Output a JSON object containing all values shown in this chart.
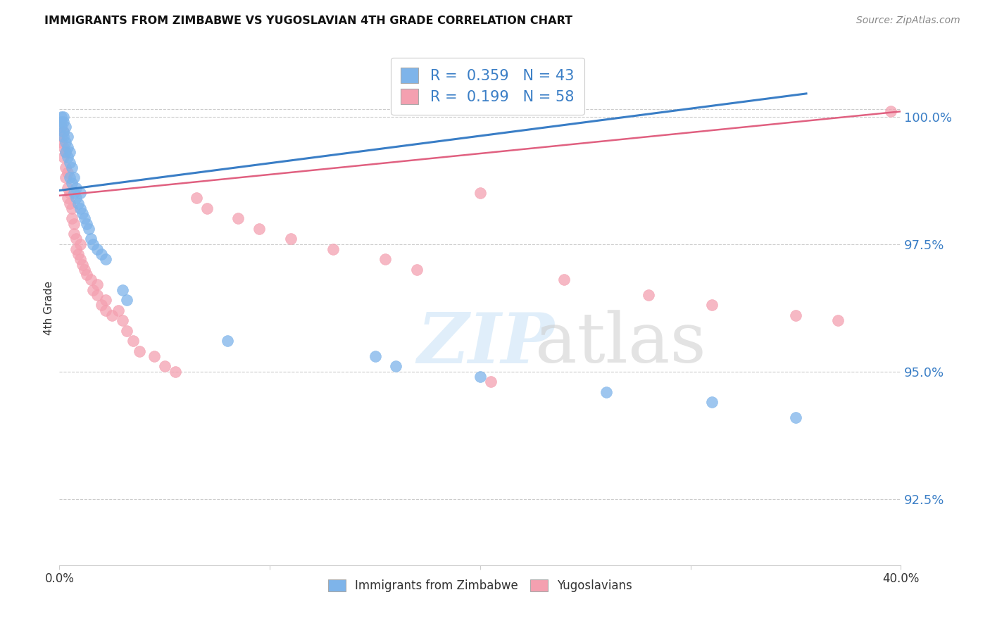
{
  "title": "IMMIGRANTS FROM ZIMBABWE VS YUGOSLAVIAN 4TH GRADE CORRELATION CHART",
  "source": "Source: ZipAtlas.com",
  "ylabel": "4th Grade",
  "yticks": [
    92.5,
    95.0,
    97.5,
    100.0
  ],
  "ytick_labels": [
    "92.5%",
    "95.0%",
    "97.5%",
    "100.0%"
  ],
  "xlim": [
    0.0,
    0.4
  ],
  "ylim": [
    91.2,
    101.3
  ],
  "blue_R": 0.359,
  "blue_N": 43,
  "pink_R": 0.199,
  "pink_N": 58,
  "blue_color": "#7EB4EA",
  "pink_color": "#F4A0B0",
  "blue_line_color": "#3A7EC6",
  "pink_line_color": "#E06080",
  "legend_label_blue": "Immigrants from Zimbabwe",
  "legend_label_pink": "Yugoslavians",
  "blue_line_x": [
    0.0,
    0.355
  ],
  "blue_line_y": [
    98.55,
    100.45
  ],
  "pink_line_x": [
    0.0,
    0.4
  ],
  "pink_line_y": [
    98.45,
    100.1
  ],
  "blue_x": [
    0.001,
    0.001,
    0.001,
    0.002,
    0.002,
    0.002,
    0.002,
    0.003,
    0.003,
    0.003,
    0.004,
    0.004,
    0.004,
    0.005,
    0.005,
    0.005,
    0.006,
    0.006,
    0.007,
    0.007,
    0.008,
    0.008,
    0.009,
    0.01,
    0.01,
    0.011,
    0.012,
    0.013,
    0.014,
    0.015,
    0.016,
    0.018,
    0.02,
    0.022,
    0.03,
    0.032,
    0.08,
    0.15,
    0.16,
    0.2,
    0.26,
    0.31,
    0.35
  ],
  "blue_y": [
    99.9,
    100.0,
    99.8,
    99.9,
    99.7,
    100.0,
    99.6,
    99.8,
    99.5,
    99.3,
    99.4,
    99.2,
    99.6,
    98.8,
    99.1,
    99.3,
    98.7,
    99.0,
    98.5,
    98.8,
    98.4,
    98.6,
    98.3,
    98.2,
    98.5,
    98.1,
    98.0,
    97.9,
    97.8,
    97.6,
    97.5,
    97.4,
    97.3,
    97.2,
    96.6,
    96.4,
    95.6,
    95.3,
    95.1,
    94.9,
    94.6,
    94.4,
    94.1
  ],
  "pink_x": [
    0.001,
    0.001,
    0.001,
    0.002,
    0.002,
    0.002,
    0.003,
    0.003,
    0.003,
    0.004,
    0.004,
    0.004,
    0.005,
    0.005,
    0.006,
    0.006,
    0.007,
    0.007,
    0.008,
    0.008,
    0.009,
    0.01,
    0.01,
    0.011,
    0.012,
    0.013,
    0.015,
    0.016,
    0.018,
    0.02,
    0.022,
    0.025,
    0.03,
    0.032,
    0.035,
    0.038,
    0.045,
    0.05,
    0.055,
    0.065,
    0.07,
    0.085,
    0.095,
    0.11,
    0.13,
    0.155,
    0.17,
    0.2,
    0.205,
    0.24,
    0.28,
    0.31,
    0.35,
    0.37,
    0.395,
    0.018,
    0.022,
    0.028
  ],
  "pink_y": [
    99.8,
    99.6,
    99.5,
    99.7,
    99.4,
    99.2,
    99.3,
    99.0,
    98.8,
    98.9,
    98.6,
    98.4,
    98.5,
    98.3,
    98.2,
    98.0,
    97.9,
    97.7,
    97.6,
    97.4,
    97.3,
    97.5,
    97.2,
    97.1,
    97.0,
    96.9,
    96.8,
    96.6,
    96.5,
    96.3,
    96.2,
    96.1,
    96.0,
    95.8,
    95.6,
    95.4,
    95.3,
    95.1,
    95.0,
    98.4,
    98.2,
    98.0,
    97.8,
    97.6,
    97.4,
    97.2,
    97.0,
    98.5,
    94.8,
    96.8,
    96.5,
    96.3,
    96.1,
    96.0,
    100.1,
    96.7,
    96.4,
    96.2
  ]
}
